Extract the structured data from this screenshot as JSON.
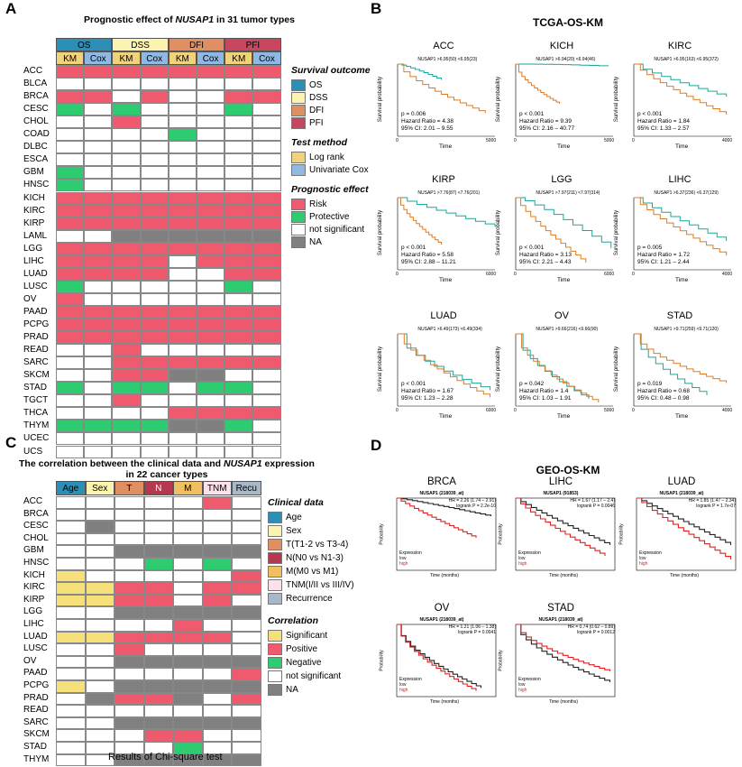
{
  "colors": {
    "risk": "#f05a6e",
    "protective": "#2ecc71",
    "ns": "#ffffff",
    "na": "#808080",
    "sig": "#f5e07a",
    "OS": "#2c8fb5",
    "DSS": "#fbf3b0",
    "DFI": "#e08f63",
    "PFI": "#c9475e",
    "univ": "#8fb8e3",
    "logrank": "#f0d27a",
    "age": "#2c8fb5",
    "sex": "#fbf3b0",
    "T": "#e08f63",
    "N": "#b5384f",
    "M": "#f0c060",
    "TNM": "#fde0ea",
    "recur": "#a8b8c8"
  },
  "panelA": {
    "label": "A",
    "title_pre": "Prognostic effect of ",
    "title_gene": "NUSAP1",
    "title_post": " in 31 tumor types",
    "groups": [
      "OS",
      "DSS",
      "DFI",
      "PFI"
    ],
    "methods": [
      "KM",
      "Cox",
      "KM",
      "Cox",
      "KM",
      "Cox",
      "KM",
      "Cox"
    ],
    "rows": [
      "ACC",
      "BLCA",
      "BRCA",
      "CESC",
      "CHOL",
      "COAD",
      "DLBC",
      "ESCA",
      "GBM",
      "HNSC",
      "KICH",
      "KIRC",
      "KIRP",
      "LAML",
      "LGG",
      "LIHC",
      "LUAD",
      "LUSC",
      "OV",
      "PAAD",
      "PCPG",
      "PRAD",
      "READ",
      "SARC",
      "SKCM",
      "STAD",
      "TGCT",
      "THCA",
      "THYM",
      "UCEC",
      "UCS"
    ],
    "cells": [
      "RRRRRRRR",
      "WWWWWWWW",
      "RRWRWWRR",
      "PWPWWWPW",
      "WWRWWWWW",
      "WWWWPWWW",
      "WWWWWWWW",
      "WWWWWWWW",
      "PWWWWWWW",
      "PWWWWWWW",
      "RRRRRRRR",
      "RRRRRRRR",
      "RRRRRRRR",
      "WWNNNNNN",
      "RRRRRRRR",
      "RRRRWRRR",
      "RRRRWWRR",
      "PWWWWWPW",
      "RWWWWWWW",
      "RRRRRRRR",
      "RRRRRRRR",
      "RRRRRRRR",
      "WWRWWWWW",
      "WWRRRRRR",
      "WWRRNNWW",
      "PWPPWPPW",
      "WWRWWWWW",
      "WWWWRRRR",
      "PPPPNNPW",
      "WWWWWWWW",
      "WWWWWWWW"
    ],
    "legend": {
      "survival_title": "Survival outcome",
      "survival": [
        "OS",
        "DSS",
        "DFI",
        "PFI"
      ],
      "test_title": "Test method",
      "tests": [
        "Log rank",
        "Univariate Cox"
      ],
      "effect_title": "Prognostic effect",
      "effects": [
        "Risk",
        "Protective",
        "not significant",
        "NA"
      ]
    }
  },
  "panelB": {
    "label": "B",
    "title": "TCGA-OS-KM",
    "plots": [
      {
        "name": "ACC",
        "legend": "NUSAP1  >6.95(50)  <6.95(23)",
        "p": "p = 0.006",
        "hr": "Hazard Ratio = 4.38",
        "ci": "95% CI: 2.01 – 9.55",
        "xmax": "5000"
      },
      {
        "name": "KICH",
        "legend": "NUSAP1  >6.94(20)  <6.94(46)",
        "p": "p < 0.001",
        "hr": "Hazard Ratio = 9.39",
        "ci": "95% CI: 2.16 – 40.77",
        "xmax": "5000"
      },
      {
        "name": "KIRC",
        "legend": "NUSAP1  >6.95(163)  <6.95(372)",
        "p": "p < 0.001",
        "hr": "Hazard Ratio = 1.84",
        "ci": "95% CI: 1.33 – 2.57",
        "xmax": "4000"
      },
      {
        "name": "KIRP",
        "legend": "NUSAP1  >7.76(87)  <7.76(201)",
        "p": "p < 0.001",
        "hr": "Hazard Ratio = 5.58",
        "ci": "95% CI: 2.88 – 11.21",
        "xmax": "6000"
      },
      {
        "name": "LGG",
        "legend": "NUSAP1  >7.97(211)  <7.97(314)",
        "p": "p < 0.001",
        "hr": "Hazard Ratio = 3.13",
        "ci": "95% CI: 2.21 – 4.43",
        "xmax": "6000"
      },
      {
        "name": "LIHC",
        "legend": "NUSAP1  >6.37(236)  <6.37(129)",
        "p": "p = 0.005",
        "hr": "Hazard Ratio = 1.72",
        "ci": "95% CI: 1.21 – 2.44",
        "xmax": "4000"
      },
      {
        "name": "LUAD",
        "legend": "NUSAP1  >6.49(173)  <6.49(334)",
        "p": "p < 0.001",
        "hr": "Hazard Ratio = 1.67",
        "ci": "95% CI: 1.23 – 2.28",
        "xmax": "6000"
      },
      {
        "name": "OV",
        "legend": "NUSAP1  >9.66(216)  <9.66(90)",
        "p": "p = 0.042",
        "hr": "Hazard Ratio = 1.4",
        "ci": "95% CI: 1.03 – 1.91",
        "xmax": "5000"
      },
      {
        "name": "STAD",
        "legend": "NUSAP1  >9.71(259)  <9.71(120)",
        "p": "p = 0.019",
        "hr": "Hazard Ratio = 0.68",
        "ci": "95% CI: 0.48 – 0.98",
        "xmax": "4000"
      }
    ],
    "ylabel": "Survival probability",
    "xlabel": "Time"
  },
  "panelC": {
    "label": "C",
    "title_pre": "The correlation between the clinical data and ",
    "title_gene": "NUSAP1",
    "title_post": " expression",
    "title2": "in 22 cancer types",
    "cols": [
      "Age",
      "Sex",
      "T",
      "N",
      "M",
      "TNM",
      "Recu"
    ],
    "rows": [
      "ACC",
      "BRCA",
      "CESC",
      "CHOL",
      "GBM",
      "HNSC",
      "KICH",
      "KIRC",
      "KIRP",
      "LGG",
      "LIHC",
      "LUAD",
      "LUSC",
      "OV",
      "PAAD",
      "PCPG",
      "PRAD",
      "READ",
      "SARC",
      "SKCM",
      "STAD",
      "THYM"
    ],
    "cells": [
      "WWWWWRW",
      "WWWWWWW",
      "WNWWWWW",
      "WWWWWWW",
      "WWNNNNN",
      "WWWPWPW",
      "SWWWWWR",
      "SSRRWRR",
      "SSRRWRW",
      "WWNNNNN",
      "WWWWRWW",
      "SSRRRRW",
      "WWRWWWW",
      "WWNNNNN",
      "WWWWWWR",
      "SWNNNNN",
      "WNRRNWR",
      "WWWWWWW",
      "WWNNNNN",
      "WWWRRWW",
      "WWWWPWW",
      "WWNNNNN"
    ],
    "footer": "Results of Chi-square test",
    "legend": {
      "clin_title": "Clinical data",
      "clin": [
        "Age",
        "Sex",
        "T(T1-2 vs T3-4)",
        "N(N0 vs N1-3)",
        "M(M0 vs M1)",
        "TNM(I/II vs III/IV)",
        "Recurrence"
      ],
      "corr_title": "Correlation",
      "corr": [
        "Significant",
        "Positive",
        "Negative",
        "not significant",
        "NA"
      ]
    }
  },
  "panelD": {
    "label": "D",
    "title": "GEO-OS-KM",
    "plots": [
      {
        "name": "BRCA",
        "sub": "NUSAP1 (218039_at)",
        "hr": "HR = 2.26 (1.74 – 2.91)",
        "lr": "logrank P = 2.2e-10"
      },
      {
        "name": "LIHC",
        "sub": "NUSAP1 (91853)",
        "hr": "HR = 1.67 (1.17 – 2.4)",
        "lr": "logrank P = 0.0046"
      },
      {
        "name": "LUAD",
        "sub": "NUSAP1 (218039_at)",
        "hr": "HR = 1.85 (1.47 – 2.34)",
        "lr": "logrank P = 1.7e-07"
      },
      {
        "name": "OV",
        "sub": "NUSAP1 (218039_at)",
        "hr": "HR = 1.21 (1.06 – 1.38)",
        "lr": "logrank P = 0.0041"
      },
      {
        "name": "STAD",
        "sub": "NUSAP1 (218039_at)",
        "hr": "HR = 0.74 (0.62 – 0.89)",
        "lr": "logrank P = 0.0012"
      }
    ],
    "ylabel": "Probability",
    "xlabel": "Time (months)",
    "exp": "Expression",
    "low": "low",
    "high": "high"
  }
}
